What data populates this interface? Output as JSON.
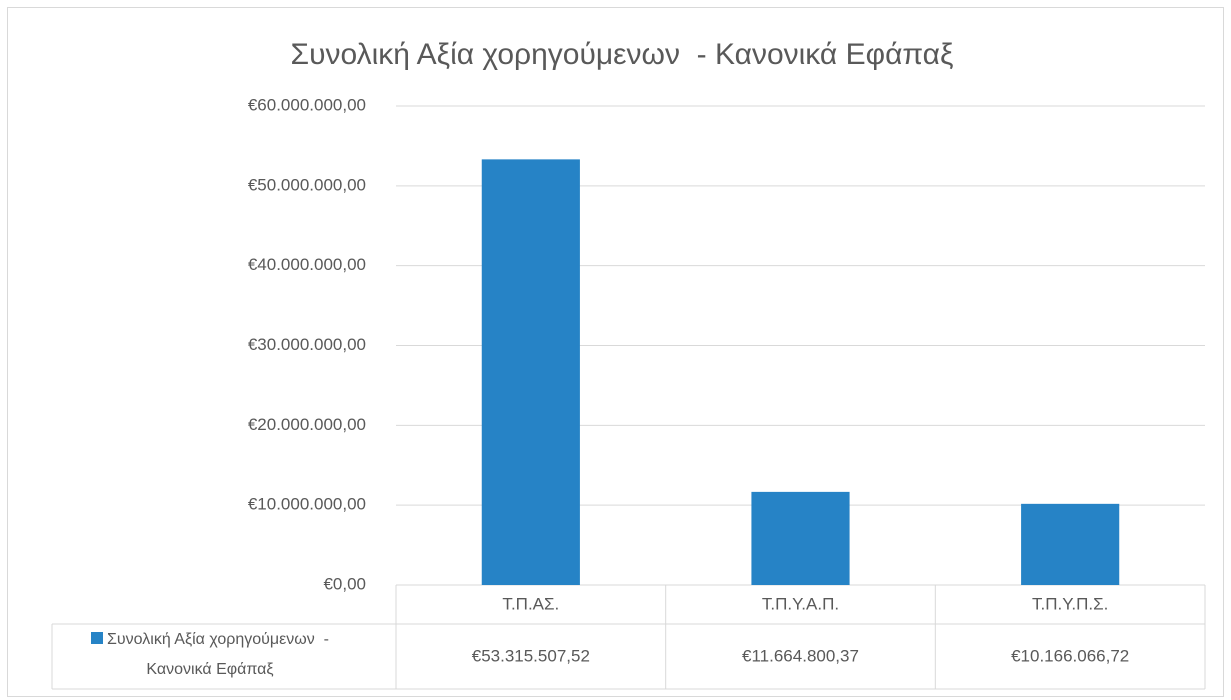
{
  "chart_data": {
    "type": "bar",
    "title": "Συνολική Αξία χορηγούμενων  - Κανονικά Εφάπαξ",
    "categories": [
      "Τ.Π.ΑΣ.",
      "Τ.Π.Υ.Α.Π.",
      "Τ.Π.Υ.Π.Σ."
    ],
    "series": [
      {
        "name": "Συνολική Αξία χορηγούμενων  - Κανονικά Εφάπαξ",
        "color": "#2683c6",
        "values": [
          53315507.52,
          11664800.37,
          10166066.72
        ],
        "value_labels": [
          "€53.315.507,52",
          "€11.664.800,37",
          "€10.166.066,72"
        ]
      }
    ],
    "ylim": [
      0,
      60000000
    ],
    "yticks": [
      {
        "value": 0,
        "label": "€0,00"
      },
      {
        "value": 10000000,
        "label": "€10.000.000,00"
      },
      {
        "value": 20000000,
        "label": "€20.000.000,00"
      },
      {
        "value": 30000000,
        "label": "€30.000.000,00"
      },
      {
        "value": 40000000,
        "label": "€40.000.000,00"
      },
      {
        "value": 50000000,
        "label": "€50.000.000,00"
      },
      {
        "value": 60000000,
        "label": "€60.000.000,00"
      }
    ],
    "grid": true,
    "data_table": true
  }
}
